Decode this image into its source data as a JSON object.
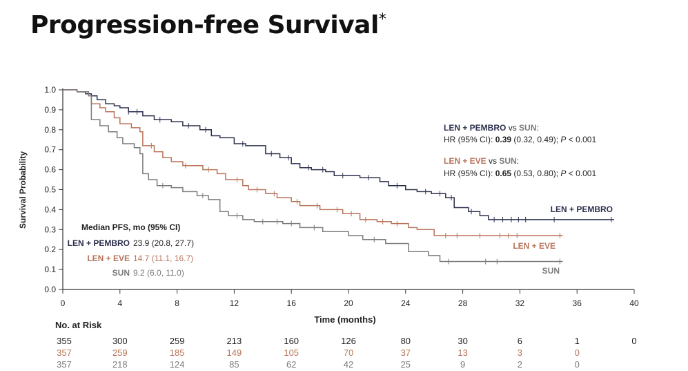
{
  "title": "Progression-free Survival",
  "title_superscript": "*",
  "chart_data": {
    "type": "line",
    "xlabel": "Time (months)",
    "ylabel": "Survival Probability",
    "xlim": [
      0,
      40
    ],
    "ylim": [
      0,
      1.0
    ],
    "xticks": [
      0,
      4,
      8,
      12,
      16,
      20,
      24,
      28,
      32,
      36,
      40
    ],
    "yticks": [
      0,
      0.1,
      0.2,
      0.3,
      0.4,
      0.5,
      0.6,
      0.7,
      0.8,
      0.9,
      1.0
    ],
    "series": [
      {
        "name": "LEN + PEMBRO",
        "color": "#2b2f4c",
        "x": [
          0,
          1,
          1.6,
          2.0,
          2.4,
          3.0,
          3.6,
          4.0,
          4.6,
          5.6,
          6.4,
          7.6,
          8.4,
          9.6,
          10.4,
          11.0,
          12.0,
          12.8,
          14.2,
          15.2,
          16.0,
          16.6,
          17.4,
          18.4,
          19.0,
          20.8,
          22.2,
          22.8,
          24.0,
          24.8,
          25.8,
          26.8,
          27.4,
          28.4,
          29.2,
          29.8,
          38.6
        ],
        "y": [
          1.0,
          0.99,
          0.98,
          0.97,
          0.95,
          0.93,
          0.92,
          0.91,
          0.89,
          0.87,
          0.85,
          0.84,
          0.82,
          0.8,
          0.77,
          0.76,
          0.73,
          0.72,
          0.68,
          0.66,
          0.63,
          0.61,
          0.6,
          0.59,
          0.57,
          0.56,
          0.54,
          0.52,
          0.5,
          0.49,
          0.48,
          0.46,
          0.41,
          0.39,
          0.37,
          0.35,
          0.35
        ],
        "censor_x": [
          4.6,
          5.2,
          6.8,
          8.8,
          10.0,
          12.6,
          14.6,
          15.8,
          17.2,
          18.2,
          19.6,
          21.4,
          23.4,
          25.4,
          26.4,
          27.2,
          28.6,
          30.2,
          30.8,
          31.4,
          31.9,
          32.4,
          34.4,
          38.4
        ]
      },
      {
        "name": "LEN + EVE",
        "color": "#b8735a",
        "x": [
          0,
          1,
          1.8,
          2.0,
          2.6,
          3.0,
          3.6,
          4.0,
          4.8,
          5.4,
          5.6,
          6.4,
          7.0,
          7.6,
          8.4,
          9.8,
          10.8,
          11.4,
          12.6,
          13.0,
          14.2,
          15.0,
          16.0,
          16.6,
          18.0,
          19.6,
          20.8,
          22.0,
          23.0,
          24.2,
          24.8,
          26.0,
          35.0
        ],
        "y": [
          1.0,
          0.99,
          0.97,
          0.93,
          0.91,
          0.89,
          0.86,
          0.83,
          0.81,
          0.79,
          0.72,
          0.69,
          0.66,
          0.64,
          0.62,
          0.6,
          0.58,
          0.55,
          0.52,
          0.5,
          0.48,
          0.46,
          0.44,
          0.42,
          0.4,
          0.38,
          0.35,
          0.34,
          0.33,
          0.31,
          0.3,
          0.27,
          0.27
        ],
        "censor_x": [
          6.2,
          8.6,
          10.2,
          12.2,
          13.6,
          14.8,
          16.4,
          17.8,
          19.2,
          20.2,
          21.2,
          22.4,
          23.4,
          26.8,
          27.6,
          29.2,
          30.6,
          31.2,
          31.8,
          34.8
        ]
      },
      {
        "name": "SUN",
        "color": "#7b7b7b",
        "x": [
          0,
          1,
          1.8,
          2.0,
          2.6,
          3.2,
          3.8,
          4.2,
          5.0,
          5.4,
          5.6,
          6.0,
          6.6,
          7.6,
          8.4,
          9.4,
          10.2,
          11.0,
          11.6,
          12.6,
          13.4,
          15.4,
          16.6,
          18.2,
          20.0,
          21.0,
          22.6,
          24.2,
          25.6,
          26.4,
          35.0
        ],
        "y": [
          1.0,
          0.99,
          0.97,
          0.85,
          0.82,
          0.79,
          0.76,
          0.73,
          0.71,
          0.68,
          0.58,
          0.55,
          0.52,
          0.51,
          0.49,
          0.47,
          0.45,
          0.39,
          0.37,
          0.35,
          0.34,
          0.33,
          0.31,
          0.29,
          0.27,
          0.25,
          0.23,
          0.19,
          0.17,
          0.14,
          0.14
        ],
        "censor_x": [
          7.0,
          9.8,
          12.2,
          14.0,
          15.0,
          16.0,
          17.6,
          21.8,
          27.0,
          29.6,
          30.4,
          34.8
        ]
      }
    ],
    "annotations": [
      {
        "series_a": "LEN + PEMBRO",
        "series_b": "SUN",
        "hr_line": "HR (95% CI): ",
        "hr_value": "0.39",
        "ci": " (0.32, 0.49); ",
        "p_label": "P",
        "p_value": " < 0.001"
      },
      {
        "series_a": "LEN + EVE",
        "series_b": "SUN",
        "hr_line": "HR (95% CI): ",
        "hr_value": "0.65",
        "ci": " (0.53, 0.80); ",
        "p_label": "P",
        "p_value": " < 0.001"
      }
    ],
    "vs_word": "vs",
    "median_pfs": {
      "heading": "Median PFS, mo (95% CI)",
      "rows": [
        {
          "name": "LEN + PEMBRO",
          "value": "23.9 (20.8, 27.7)"
        },
        {
          "name": "LEN + EVE",
          "value": "14.7 (11.1, 16.7)"
        },
        {
          "name": "SUN",
          "value": "9.2 (6.0, 11.0)"
        }
      ]
    }
  },
  "risk_table": {
    "title": "No. at Risk",
    "timepoints": [
      0,
      4,
      8,
      12,
      16,
      20,
      24,
      28,
      32,
      36,
      40
    ],
    "rows": [
      {
        "name": "LEN + PEMBRO",
        "values": [
          "355",
          "300",
          "259",
          "213",
          "160",
          "126",
          "80",
          "30",
          "6",
          "1",
          "0"
        ]
      },
      {
        "name": "LEN + EVE",
        "values": [
          "357",
          "259",
          "185",
          "149",
          "105",
          "70",
          "37",
          "13",
          "3",
          "0",
          ""
        ]
      },
      {
        "name": "SUN",
        "values": [
          "357",
          "218",
          "124",
          "85",
          "62",
          "42",
          "25",
          "9",
          "2",
          "0",
          ""
        ]
      }
    ]
  }
}
